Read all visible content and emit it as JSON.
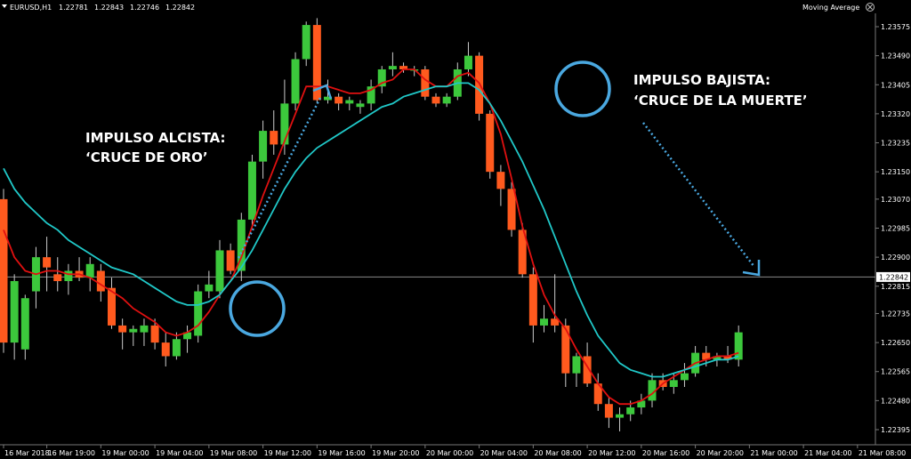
{
  "chart_data": {
    "type": "candlestick",
    "header": {
      "symbol": "EURUSD,H1",
      "open": "1.22781",
      "high": "1.22843",
      "low": "1.22746",
      "close": "1.22842",
      "indicator": "Moving Average",
      "close_icon": "close-icon"
    },
    "current_price": "1.22842",
    "current_price_value": 1.22842,
    "y_axis": {
      "ticks": [
        1.23575,
        1.2349,
        1.23405,
        1.2332,
        1.23235,
        1.2315,
        1.2307,
        1.22985,
        1.229,
        1.22815,
        1.22735,
        1.2265,
        1.22565,
        1.2248,
        1.22395
      ],
      "tick_labels": [
        "1.23575",
        "1.23490",
        "1.23405",
        "1.23320",
        "1.23235",
        "1.23150",
        "1.23070",
        "1.22985",
        "1.22900",
        "1.22815",
        "1.22735",
        "1.22650",
        "1.22565",
        "1.22480",
        "1.22395"
      ]
    },
    "x_axis": {
      "labels": [
        "16 Mar 2018",
        "16 Mar 19:00",
        "19 Mar 00:00",
        "19 Mar 04:00",
        "19 Mar 08:00",
        "19 Mar 12:00",
        "19 Mar 16:00",
        "19 Mar 20:00",
        "20 Mar 00:00",
        "20 Mar 04:00",
        "20 Mar 08:00",
        "20 Mar 12:00",
        "20 Mar 16:00",
        "20 Mar 20:00",
        "21 Mar 00:00",
        "21 Mar 04:00",
        "21 Mar 08:00"
      ],
      "label_bar_index": [
        0,
        4,
        9,
        14,
        19,
        24,
        29,
        34,
        39,
        44,
        49,
        54,
        59,
        64,
        69,
        74,
        79
      ]
    },
    "candles": [
      {
        "o": 1.2307,
        "h": 1.231,
        "l": 1.2262,
        "c": 1.2265
      },
      {
        "o": 1.2265,
        "h": 1.2285,
        "l": 1.226,
        "c": 1.2283
      },
      {
        "o": 1.2263,
        "h": 1.2279,
        "l": 1.226,
        "c": 1.2278
      },
      {
        "o": 1.228,
        "h": 1.2293,
        "l": 1.2275,
        "c": 1.229
      },
      {
        "o": 1.229,
        "h": 1.2296,
        "l": 1.228,
        "c": 1.2287
      },
      {
        "o": 1.2285,
        "h": 1.229,
        "l": 1.228,
        "c": 1.2283
      },
      {
        "o": 1.2283,
        "h": 1.2288,
        "l": 1.2279,
        "c": 1.2286
      },
      {
        "o": 1.2286,
        "h": 1.229,
        "l": 1.2283,
        "c": 1.2284
      },
      {
        "o": 1.2284,
        "h": 1.229,
        "l": 1.228,
        "c": 1.2288
      },
      {
        "o": 1.2286,
        "h": 1.2288,
        "l": 1.2277,
        "c": 1.228
      },
      {
        "o": 1.2281,
        "h": 1.2284,
        "l": 1.2269,
        "c": 1.227
      },
      {
        "o": 1.227,
        "h": 1.2272,
        "l": 1.2263,
        "c": 1.2268
      },
      {
        "o": 1.2268,
        "h": 1.227,
        "l": 1.2264,
        "c": 1.2269
      },
      {
        "o": 1.2268,
        "h": 1.2272,
        "l": 1.2264,
        "c": 1.227
      },
      {
        "o": 1.227,
        "h": 1.2272,
        "l": 1.2263,
        "c": 1.2265
      },
      {
        "o": 1.2265,
        "h": 1.2268,
        "l": 1.2258,
        "c": 1.2261
      },
      {
        "o": 1.2261,
        "h": 1.2268,
        "l": 1.226,
        "c": 1.2266
      },
      {
        "o": 1.2266,
        "h": 1.227,
        "l": 1.2262,
        "c": 1.2268
      },
      {
        "o": 1.2267,
        "h": 1.2282,
        "l": 1.2265,
        "c": 1.228
      },
      {
        "o": 1.228,
        "h": 1.2286,
        "l": 1.2278,
        "c": 1.2282
      },
      {
        "o": 1.228,
        "h": 1.2295,
        "l": 1.2278,
        "c": 1.2292
      },
      {
        "o": 1.2292,
        "h": 1.2294,
        "l": 1.2285,
        "c": 1.2286
      },
      {
        "o": 1.2286,
        "h": 1.2303,
        "l": 1.2283,
        "c": 1.2301
      },
      {
        "o": 1.2301,
        "h": 1.232,
        "l": 1.2299,
        "c": 1.2318
      },
      {
        "o": 1.2318,
        "h": 1.233,
        "l": 1.2313,
        "c": 1.2327
      },
      {
        "o": 1.2327,
        "h": 1.2333,
        "l": 1.232,
        "c": 1.2323
      },
      {
        "o": 1.2323,
        "h": 1.2342,
        "l": 1.232,
        "c": 1.2335
      },
      {
        "o": 1.2335,
        "h": 1.235,
        "l": 1.2333,
        "c": 1.2348
      },
      {
        "o": 1.2348,
        "h": 1.2359,
        "l": 1.2346,
        "c": 1.2358
      },
      {
        "o": 1.2358,
        "h": 1.236,
        "l": 1.2335,
        "c": 1.2336
      },
      {
        "o": 1.2336,
        "h": 1.2342,
        "l": 1.2335,
        "c": 1.2337
      },
      {
        "o": 1.2337,
        "h": 1.2338,
        "l": 1.2333,
        "c": 1.2335
      },
      {
        "o": 1.2335,
        "h": 1.2337,
        "l": 1.2333,
        "c": 1.2336
      },
      {
        "o": 1.2334,
        "h": 1.2336,
        "l": 1.2332,
        "c": 1.2335
      },
      {
        "o": 1.2335,
        "h": 1.2342,
        "l": 1.2333,
        "c": 1.234
      },
      {
        "o": 1.234,
        "h": 1.2346,
        "l": 1.2338,
        "c": 1.2345
      },
      {
        "o": 1.2345,
        "h": 1.235,
        "l": 1.2343,
        "c": 1.2346
      },
      {
        "o": 1.2346,
        "h": 1.2347,
        "l": 1.2344,
        "c": 1.2345
      },
      {
        "o": 1.2345,
        "h": 1.2346,
        "l": 1.2343,
        "c": 1.2345
      },
      {
        "o": 1.2345,
        "h": 1.2346,
        "l": 1.2336,
        "c": 1.2337
      },
      {
        "o": 1.2337,
        "h": 1.2338,
        "l": 1.2334,
        "c": 1.2335
      },
      {
        "o": 1.2335,
        "h": 1.2338,
        "l": 1.2334,
        "c": 1.2337
      },
      {
        "o": 1.2337,
        "h": 1.2347,
        "l": 1.2336,
        "c": 1.2345
      },
      {
        "o": 1.2345,
        "h": 1.2353,
        "l": 1.2343,
        "c": 1.2349
      },
      {
        "o": 1.2349,
        "h": 1.235,
        "l": 1.233,
        "c": 1.2332
      },
      {
        "o": 1.2332,
        "h": 1.2333,
        "l": 1.2313,
        "c": 1.2315
      },
      {
        "o": 1.2315,
        "h": 1.2317,
        "l": 1.2305,
        "c": 1.231
      },
      {
        "o": 1.231,
        "h": 1.2312,
        "l": 1.2296,
        "c": 1.2298
      },
      {
        "o": 1.2298,
        "h": 1.23,
        "l": 1.2284,
        "c": 1.2285
      },
      {
        "o": 1.2285,
        "h": 1.2287,
        "l": 1.2265,
        "c": 1.227
      },
      {
        "o": 1.227,
        "h": 1.2276,
        "l": 1.2268,
        "c": 1.2272
      },
      {
        "o": 1.2272,
        "h": 1.2285,
        "l": 1.2268,
        "c": 1.227
      },
      {
        "o": 1.227,
        "h": 1.2272,
        "l": 1.2252,
        "c": 1.2256
      },
      {
        "o": 1.2256,
        "h": 1.2262,
        "l": 1.2252,
        "c": 1.2261
      },
      {
        "o": 1.2261,
        "h": 1.2265,
        "l": 1.2252,
        "c": 1.2253
      },
      {
        "o": 1.2253,
        "h": 1.2256,
        "l": 1.2245,
        "c": 1.2247
      },
      {
        "o": 1.2247,
        "h": 1.2249,
        "l": 1.224,
        "c": 1.2243
      },
      {
        "o": 1.2243,
        "h": 1.2246,
        "l": 1.2239,
        "c": 1.2244
      },
      {
        "o": 1.2244,
        "h": 1.2248,
        "l": 1.2242,
        "c": 1.2246
      },
      {
        "o": 1.2246,
        "h": 1.225,
        "l": 1.2244,
        "c": 1.2248
      },
      {
        "o": 1.2248,
        "h": 1.2256,
        "l": 1.2246,
        "c": 1.2254
      },
      {
        "o": 1.2254,
        "h": 1.2256,
        "l": 1.2251,
        "c": 1.2252
      },
      {
        "o": 1.2252,
        "h": 1.2256,
        "l": 1.225,
        "c": 1.2254
      },
      {
        "o": 1.2254,
        "h": 1.2259,
        "l": 1.2252,
        "c": 1.2256
      },
      {
        "o": 1.2256,
        "h": 1.2264,
        "l": 1.2255,
        "c": 1.2262
      },
      {
        "o": 1.2262,
        "h": 1.2264,
        "l": 1.2258,
        "c": 1.226
      },
      {
        "o": 1.226,
        "h": 1.2262,
        "l": 1.2258,
        "c": 1.2261
      },
      {
        "o": 1.2261,
        "h": 1.2264,
        "l": 1.2259,
        "c": 1.226
      },
      {
        "o": 1.226,
        "h": 1.227,
        "l": 1.2258,
        "c": 1.2268
      }
    ],
    "series": [
      {
        "color": "#e01010",
        "values": [
          1.2298,
          1.229,
          1.2286,
          1.2285,
          1.2286,
          1.2286,
          1.2285,
          1.2285,
          1.2284,
          1.2282,
          1.228,
          1.2278,
          1.2275,
          1.2273,
          1.2271,
          1.2268,
          1.2267,
          1.2268,
          1.227,
          1.2274,
          1.2279,
          1.2283,
          1.229,
          1.2299,
          1.2308,
          1.2316,
          1.2324,
          1.2332,
          1.234,
          1.234,
          1.234,
          1.2339,
          1.2338,
          1.2338,
          1.2339,
          1.2341,
          1.2342,
          1.2345,
          1.2345,
          1.2342,
          1.234,
          1.234,
          1.2343,
          1.2344,
          1.2341,
          1.2335,
          1.2326,
          1.2313,
          1.2299,
          1.2288,
          1.2279,
          1.2273,
          1.2269,
          1.2263,
          1.2258,
          1.2253,
          1.2249,
          1.2247,
          1.2247,
          1.2248,
          1.225,
          1.2253,
          1.2255,
          1.2257,
          1.2259,
          1.226,
          1.2261,
          1.2261,
          1.2262
        ]
      },
      {
        "color": "#20c8c8",
        "values": [
          1.2316,
          1.231,
          1.2306,
          1.2303,
          1.23,
          1.2298,
          1.2295,
          1.2293,
          1.2291,
          1.2289,
          1.2287,
          1.2286,
          1.2285,
          1.2283,
          1.2281,
          1.2279,
          1.2277,
          1.2276,
          1.2276,
          1.2277,
          1.2279,
          1.2283,
          1.2287,
          1.2292,
          1.2298,
          1.2304,
          1.231,
          1.2315,
          1.2319,
          1.2322,
          1.2324,
          1.2326,
          1.2328,
          1.233,
          1.2332,
          1.2334,
          1.2335,
          1.2337,
          1.2338,
          1.2339,
          1.234,
          1.234,
          1.2341,
          1.2341,
          1.2339,
          1.2335,
          1.233,
          1.2324,
          1.2318,
          1.2311,
          1.2304,
          1.2296,
          1.2288,
          1.228,
          1.2273,
          1.2267,
          1.2263,
          1.2259,
          1.2257,
          1.2256,
          1.2255,
          1.2255,
          1.2256,
          1.2257,
          1.2258,
          1.2259,
          1.226,
          1.226,
          1.2261
        ]
      }
    ],
    "annotations": [
      {
        "line1": "IMPULSO ALCISTA:",
        "line2": "‘CRUCE DE ORO’"
      },
      {
        "line1": "IMPULSO BAJISTA:",
        "line2": "‘CRUCE DE LA MUERTE’"
      }
    ],
    "colors": {
      "bull": "#3cc83c",
      "bear": "#ff5a1e",
      "grid": "#2a2a2a",
      "axis": "#777777",
      "circle": "#4aa8e0",
      "arrow": "#4aa8e0",
      "price_line": "#888888",
      "background": "#000000"
    }
  }
}
